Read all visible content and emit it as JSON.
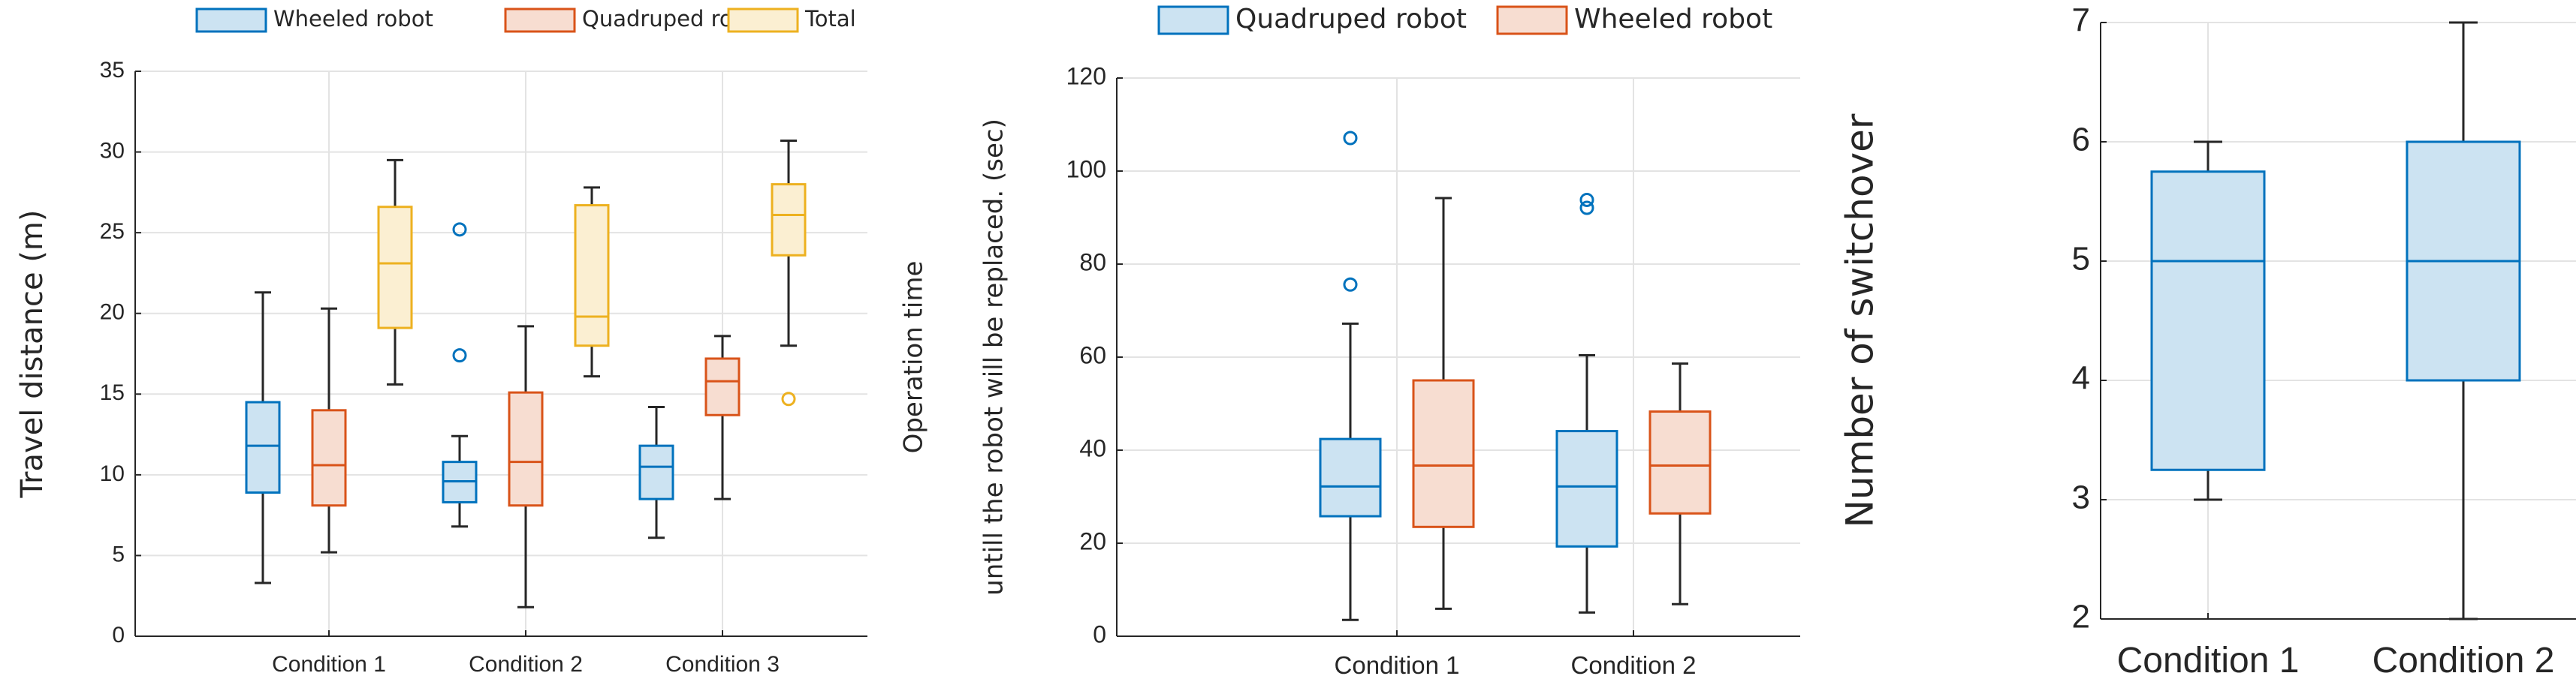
{
  "chart_data": [
    {
      "type": "boxplot",
      "title": "",
      "xlabel": "",
      "ylabel": "Travel distance (m)",
      "ylim": [
        0,
        35
      ],
      "yticks": [
        0,
        5,
        10,
        15,
        20,
        25,
        30,
        35
      ],
      "grid": true,
      "legend_position": "top",
      "categories": [
        "Condition 1",
        "Condition 2",
        "Condition 3"
      ],
      "colors": {
        "Wheeled robot": "#0072BD",
        "Quadruped robot": "#D95319",
        "Total": "#EDB120"
      },
      "series": [
        {
          "name": "Wheeled robot",
          "boxes": [
            {
              "whisker_low": 3.3,
              "q1": 8.9,
              "median": 11.8,
              "q3": 14.5,
              "whisker_high": 21.3,
              "outliers": []
            },
            {
              "whisker_low": 6.8,
              "q1": 8.3,
              "median": 9.6,
              "q3": 10.8,
              "whisker_high": 12.4,
              "outliers": [
                25.2,
                17.4
              ]
            },
            {
              "whisker_low": 6.1,
              "q1": 8.5,
              "median": 10.5,
              "q3": 11.8,
              "whisker_high": 14.2,
              "outliers": []
            }
          ]
        },
        {
          "name": "Quadruped robot",
          "boxes": [
            {
              "whisker_low": 5.2,
              "q1": 8.1,
              "median": 10.6,
              "q3": 14.0,
              "whisker_high": 20.3,
              "outliers": []
            },
            {
              "whisker_low": 1.8,
              "q1": 8.1,
              "median": 10.8,
              "q3": 15.1,
              "whisker_high": 19.2,
              "outliers": []
            },
            {
              "whisker_low": 8.5,
              "q1": 13.7,
              "median": 15.8,
              "q3": 17.2,
              "whisker_high": 18.6,
              "outliers": []
            }
          ]
        },
        {
          "name": "Total",
          "boxes": [
            {
              "whisker_low": 15.6,
              "q1": 19.1,
              "median": 23.1,
              "q3": 26.6,
              "whisker_high": 29.5,
              "outliers": []
            },
            {
              "whisker_low": 16.1,
              "q1": 18.0,
              "median": 19.8,
              "q3": 26.7,
              "whisker_high": 27.8,
              "outliers": []
            },
            {
              "whisker_low": 18.0,
              "q1": 23.6,
              "median": 26.1,
              "q3": 28.0,
              "whisker_high": 30.7,
              "outliers": [
                14.7
              ]
            }
          ]
        }
      ]
    },
    {
      "type": "boxplot",
      "title": "",
      "xlabel": "",
      "ylabel_lines": [
        "Operation time",
        "untill the robot will be replaced. (sec)"
      ],
      "ylim": [
        0,
        120
      ],
      "yticks": [
        0,
        20,
        40,
        60,
        80,
        100,
        120
      ],
      "grid": true,
      "legend_position": "top",
      "categories": [
        "Condition 1",
        "Condition 2"
      ],
      "colors": {
        "Quadruped robot": "#0072BD",
        "Wheeled robot": "#D95319"
      },
      "series": [
        {
          "name": "Quadruped robot",
          "boxes": [
            {
              "whisker_low": 3.5,
              "q1": 25.8,
              "median": 32.2,
              "q3": 42.4,
              "whisker_high": 67.2,
              "outliers": [
                107.1,
                75.6
              ]
            },
            {
              "whisker_low": 5.1,
              "q1": 19.3,
              "median": 32.2,
              "q3": 44.1,
              "whisker_high": 60.4,
              "outliers": [
                93.8,
                92.1
              ]
            }
          ]
        },
        {
          "name": "Wheeled robot",
          "boxes": [
            {
              "whisker_low": 5.9,
              "q1": 23.5,
              "median": 36.7,
              "q3": 55.0,
              "whisker_high": 94.2,
              "outliers": []
            },
            {
              "whisker_low": 6.9,
              "q1": 26.4,
              "median": 36.7,
              "q3": 48.3,
              "whisker_high": 58.6,
              "outliers": []
            }
          ]
        }
      ]
    },
    {
      "type": "boxplot",
      "title": "",
      "xlabel": "",
      "ylabel": "Number of switchover",
      "ylim": [
        2,
        7
      ],
      "yticks": [
        2,
        3,
        4,
        5,
        6,
        7
      ],
      "grid": true,
      "categories": [
        "Condition 1",
        "Condition 2"
      ],
      "colors": {
        "box": "#0072BD"
      },
      "series": [
        {
          "boxes": [
            {
              "whisker_low": 3.0,
              "q1": 3.25,
              "median": 5.0,
              "q3": 5.75,
              "whisker_high": 6.0,
              "outliers": []
            },
            {
              "whisker_low": 2.0,
              "q1": 4.0,
              "median": 5.0,
              "q3": 6.0,
              "whisker_high": 7.0,
              "outliers": []
            }
          ]
        }
      ]
    }
  ]
}
